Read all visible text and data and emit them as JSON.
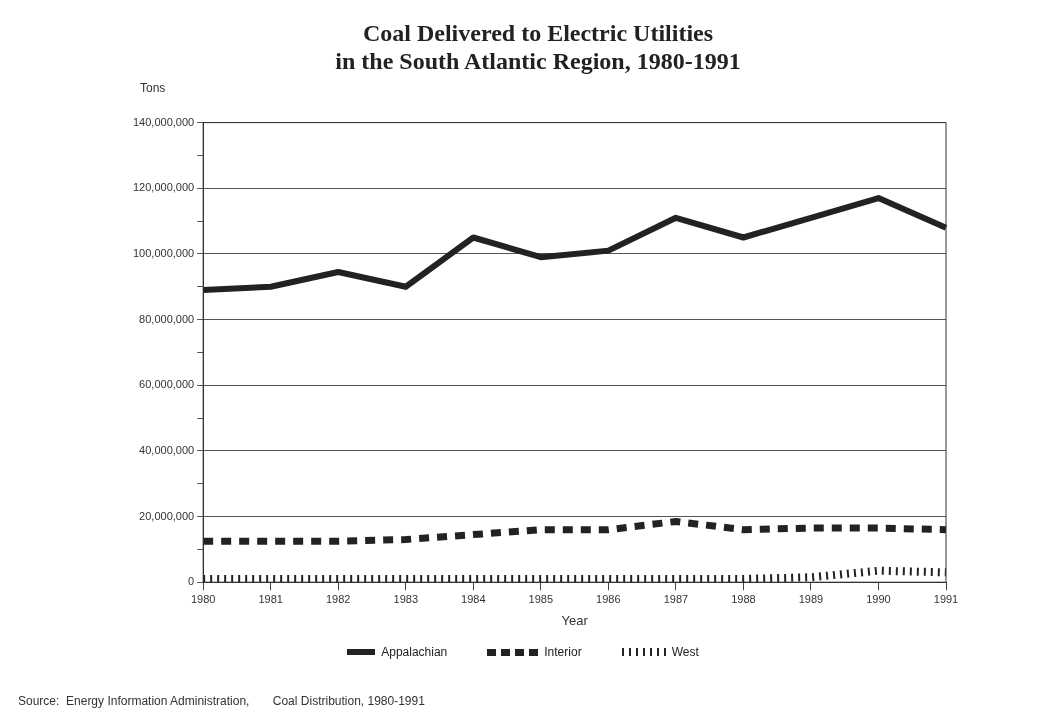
{
  "chart_data": {
    "type": "line",
    "title": [
      "Coal Delivered to Electric Utilities",
      "in the South Atlantic Region, 1980-1991"
    ],
    "ylabel": "Tons",
    "xlabel": "Year",
    "categories": [
      "1980",
      "1981",
      "1982",
      "1983",
      "1984",
      "1985",
      "1986",
      "1987",
      "1988",
      "1989",
      "1990",
      "1991"
    ],
    "series": [
      {
        "name": "Appalachian",
        "color": "#222222",
        "line_style": "solid",
        "values": [
          89000000,
          90000000,
          94500000,
          90000000,
          105000000,
          99000000,
          101000000,
          111000000,
          105000000,
          111000000,
          117000000,
          108000000
        ]
      },
      {
        "name": "Interior",
        "color": "#222222",
        "line_style": "dashed",
        "values": [
          12500000,
          12500000,
          12500000,
          13000000,
          14500000,
          16000000,
          16000000,
          18500000,
          16000000,
          16500000,
          16500000,
          16000000
        ]
      },
      {
        "name": "West",
        "color": "#222222",
        "line_style": "dotted",
        "values": [
          1000000,
          1000000,
          1000000,
          1000000,
          1000000,
          1000000,
          1000000,
          1000000,
          1000000,
          1500000,
          3500000,
          3000000
        ]
      }
    ],
    "ylim": [
      0,
      140000000
    ],
    "yticks": [
      0,
      {
        "value": 10000000,
        "label": null
      },
      {
        "value": 20000000,
        "label": "20,000,000"
      },
      {
        "value": 30000000,
        "label": null
      },
      {
        "value": 40000000,
        "label": "40,000,000"
      },
      {
        "value": 50000000,
        "label": null
      },
      {
        "value": 60000000,
        "label": "60,000,000"
      },
      {
        "value": 70000000,
        "label": null
      },
      {
        "value": 80000000,
        "label": "80,000,000"
      },
      {
        "value": 90000000,
        "label": null
      },
      {
        "value": 100000000,
        "label": "100,000,000"
      },
      {
        "value": 110000000,
        "label": null
      },
      {
        "value": 120000000,
        "label": "120,000,000"
      },
      {
        "value": 130000000,
        "label": null
      },
      {
        "value": 140000000,
        "label": "140,000,000"
      }
    ],
    "grid": "y",
    "legend": "bottom",
    "marker": "none",
    "annotations": [
      "Source:  Energy Information Administration,       Coal Distribution, 1980-1991"
    ]
  }
}
